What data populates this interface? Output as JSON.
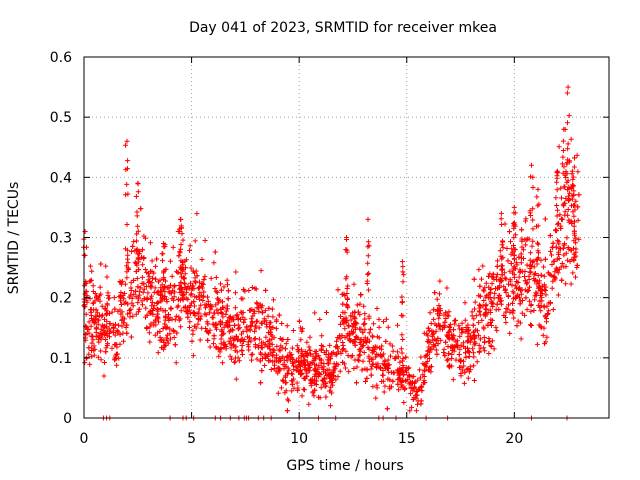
{
  "chart_data": {
    "type": "scatter",
    "title": "Day 041 of 2023, SRMTID for receiver mkea",
    "xlabel": "GPS time / hours",
    "ylabel": "SRMTID / TECUs",
    "xlim": [
      0,
      24.4
    ],
    "ylim": [
      0,
      0.6
    ],
    "x_ticks": [
      0,
      5,
      10,
      15,
      20
    ],
    "x_tick_labels": [
      "0",
      "5",
      "10",
      "15",
      "20"
    ],
    "y_ticks": [
      0,
      0.1,
      0.2,
      0.3,
      0.4,
      0.5,
      0.6
    ],
    "y_tick_labels": [
      "0",
      "0.1",
      "0.2",
      "0.3",
      "0.4",
      "0.5",
      "0.6"
    ],
    "grid": true,
    "marker": "+",
    "series": [
      {
        "name": "SRMTID",
        "color": "#ff0000",
        "trend_hours": [
          0,
          0.5,
          1,
          1.5,
          2,
          2.5,
          3,
          3.5,
          4,
          4.5,
          5,
          5.5,
          6,
          6.5,
          7,
          7.5,
          8,
          8.5,
          9,
          9.5,
          10,
          10.5,
          11,
          11.5,
          12,
          12.5,
          13,
          13.5,
          14,
          14.5,
          15,
          15.5,
          16,
          16.5,
          17,
          17.5,
          18,
          18.5,
          19,
          19.5,
          20,
          20.5,
          21,
          21.5,
          22,
          22.5,
          23
        ],
        "trend_values": [
          0.16,
          0.16,
          0.15,
          0.15,
          0.2,
          0.24,
          0.2,
          0.19,
          0.18,
          0.2,
          0.2,
          0.2,
          0.18,
          0.16,
          0.14,
          0.14,
          0.15,
          0.15,
          0.1,
          0.08,
          0.09,
          0.08,
          0.08,
          0.07,
          0.15,
          0.14,
          0.12,
          0.1,
          0.09,
          0.08,
          0.07,
          0.04,
          0.1,
          0.16,
          0.14,
          0.1,
          0.13,
          0.17,
          0.18,
          0.22,
          0.23,
          0.24,
          0.2,
          0.19,
          0.27,
          0.33,
          0.3
        ],
        "spikes": [
          {
            "x": 0.05,
            "y": 0.31
          },
          {
            "x": 2.0,
            "y": 0.46
          },
          {
            "x": 2.5,
            "y": 0.39
          },
          {
            "x": 3.7,
            "y": 0.29
          },
          {
            "x": 4.5,
            "y": 0.33
          },
          {
            "x": 4.6,
            "y": 0.26
          },
          {
            "x": 12.2,
            "y": 0.3
          },
          {
            "x": 13.2,
            "y": 0.33
          },
          {
            "x": 14.8,
            "y": 0.26
          },
          {
            "x": 19.4,
            "y": 0.34
          },
          {
            "x": 20.0,
            "y": 0.35
          },
          {
            "x": 20.8,
            "y": 0.42
          },
          {
            "x": 21.1,
            "y": 0.38
          },
          {
            "x": 22.0,
            "y": 0.41
          },
          {
            "x": 22.3,
            "y": 0.48
          },
          {
            "x": 22.5,
            "y": 0.55
          },
          {
            "x": 22.7,
            "y": 0.41
          }
        ],
        "zero_points_hours": [
          0.9,
          1.05,
          1.2,
          4.0,
          4.6,
          4.75,
          5.1,
          6.1,
          6.35,
          6.8,
          7.2,
          7.45,
          7.55,
          7.65,
          8.1,
          8.35,
          8.7,
          10.0,
          10.9,
          11.7,
          13.7,
          13.9,
          14.5,
          15.9,
          16.9,
          20.8,
          22.45
        ],
        "point_count": 2600
      }
    ]
  }
}
